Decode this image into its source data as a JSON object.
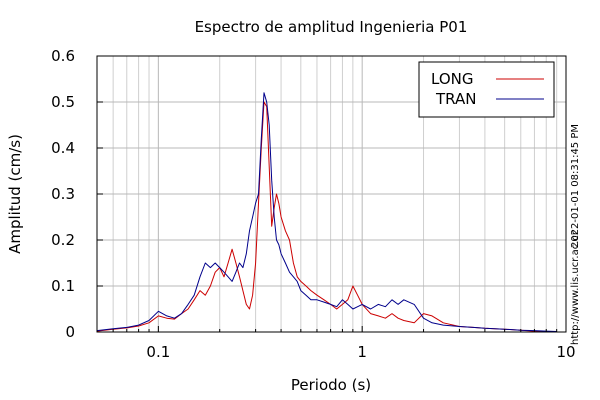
{
  "chart_data": {
    "type": "line",
    "title": "Espectro de amplitud Ingenieria P01",
    "xlabel": "Periodo (s)",
    "ylabel": "Amplitud (cm/s)",
    "x_scale": "log",
    "xlim": [
      0.05,
      10
    ],
    "ylim": [
      0,
      0.6
    ],
    "x_ticks": [
      {
        "value": 0.1,
        "label": "0.1"
      },
      {
        "value": 1,
        "label": "1"
      },
      {
        "value": 10,
        "label": "10"
      }
    ],
    "y_ticks": [
      {
        "value": 0,
        "label": "0"
      },
      {
        "value": 0.1,
        "label": "0.1"
      },
      {
        "value": 0.2,
        "label": "0.2"
      },
      {
        "value": 0.3,
        "label": "0.3"
      },
      {
        "value": 0.4,
        "label": "0.4"
      },
      {
        "value": 0.5,
        "label": "0.5"
      },
      {
        "value": 0.6,
        "label": "0.6"
      }
    ],
    "grid": true,
    "legend": "top-right",
    "series": [
      {
        "name": "LONG",
        "color": "#cc0000",
        "x": [
          0.05,
          0.06,
          0.07,
          0.08,
          0.09,
          0.1,
          0.11,
          0.12,
          0.13,
          0.14,
          0.15,
          0.16,
          0.17,
          0.18,
          0.19,
          0.2,
          0.21,
          0.22,
          0.23,
          0.24,
          0.25,
          0.26,
          0.27,
          0.28,
          0.29,
          0.3,
          0.31,
          0.32,
          0.33,
          0.34,
          0.35,
          0.36,
          0.37,
          0.38,
          0.39,
          0.4,
          0.42,
          0.44,
          0.46,
          0.48,
          0.5,
          0.53,
          0.56,
          0.6,
          0.65,
          0.7,
          0.75,
          0.8,
          0.85,
          0.9,
          0.95,
          1.0,
          1.1,
          1.2,
          1.3,
          1.4,
          1.5,
          1.6,
          1.8,
          2.0,
          2.2,
          2.5,
          3.0,
          3.5,
          4.0,
          5.0,
          6.0,
          7.0,
          8.0,
          9.0
        ],
        "y": [
          0.002,
          0.006,
          0.009,
          0.013,
          0.02,
          0.035,
          0.03,
          0.028,
          0.04,
          0.05,
          0.07,
          0.09,
          0.08,
          0.1,
          0.13,
          0.14,
          0.12,
          0.15,
          0.18,
          0.15,
          0.12,
          0.09,
          0.06,
          0.05,
          0.08,
          0.15,
          0.28,
          0.4,
          0.5,
          0.49,
          0.36,
          0.23,
          0.27,
          0.3,
          0.28,
          0.25,
          0.22,
          0.2,
          0.15,
          0.12,
          0.11,
          0.1,
          0.09,
          0.08,
          0.07,
          0.06,
          0.05,
          0.06,
          0.07,
          0.1,
          0.08,
          0.06,
          0.04,
          0.035,
          0.03,
          0.04,
          0.03,
          0.025,
          0.02,
          0.04,
          0.035,
          0.02,
          0.012,
          0.01,
          0.008,
          0.006,
          0.004,
          0.002,
          0.001,
          0.001
        ]
      },
      {
        "name": "TRAN",
        "color": "#00008b",
        "x": [
          0.05,
          0.06,
          0.07,
          0.08,
          0.09,
          0.1,
          0.11,
          0.12,
          0.13,
          0.14,
          0.15,
          0.16,
          0.17,
          0.18,
          0.19,
          0.2,
          0.21,
          0.22,
          0.23,
          0.24,
          0.25,
          0.26,
          0.27,
          0.28,
          0.29,
          0.3,
          0.31,
          0.32,
          0.33,
          0.34,
          0.35,
          0.36,
          0.37,
          0.38,
          0.39,
          0.4,
          0.42,
          0.44,
          0.46,
          0.48,
          0.5,
          0.53,
          0.56,
          0.6,
          0.65,
          0.7,
          0.75,
          0.8,
          0.85,
          0.9,
          0.95,
          1.0,
          1.1,
          1.2,
          1.3,
          1.4,
          1.5,
          1.6,
          1.8,
          2.0,
          2.2,
          2.5,
          3.0,
          3.5,
          4.0,
          5.0,
          6.0,
          7.0,
          8.0,
          9.0
        ],
        "y": [
          0.003,
          0.007,
          0.01,
          0.015,
          0.025,
          0.045,
          0.035,
          0.03,
          0.04,
          0.06,
          0.08,
          0.12,
          0.15,
          0.14,
          0.15,
          0.14,
          0.13,
          0.12,
          0.11,
          0.13,
          0.15,
          0.14,
          0.17,
          0.22,
          0.25,
          0.28,
          0.3,
          0.42,
          0.52,
          0.5,
          0.45,
          0.33,
          0.25,
          0.2,
          0.19,
          0.17,
          0.15,
          0.13,
          0.12,
          0.11,
          0.09,
          0.08,
          0.07,
          0.07,
          0.065,
          0.06,
          0.055,
          0.07,
          0.06,
          0.05,
          0.055,
          0.06,
          0.05,
          0.06,
          0.055,
          0.07,
          0.06,
          0.07,
          0.06,
          0.03,
          0.02,
          0.015,
          0.012,
          0.01,
          0.008,
          0.006,
          0.004,
          0.003,
          0.002,
          0.001
        ]
      }
    ],
    "annotations": [
      "2022-01-01 08:31:45 PM",
      "http://www.lis.ucr.ac.cr"
    ]
  }
}
